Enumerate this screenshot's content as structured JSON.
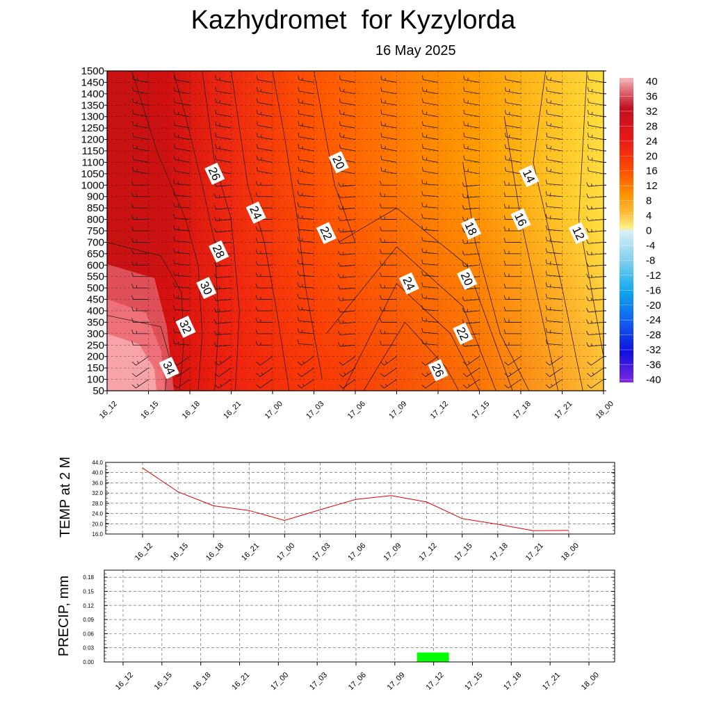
{
  "header": {
    "title": "Kazhydromet  for Kyzylorda",
    "date": "16 May 2025"
  },
  "colors": {
    "temp_line": "#e00000",
    "precip_bar": "#00ff00",
    "contour_line": "#3a1a10"
  },
  "chart_data": [
    {
      "type": "heatmap",
      "title": "",
      "x_ticks": [
        "16_12",
        "16_15",
        "16_18",
        "16_21",
        "17_00",
        "17_03",
        "17_06",
        "17_09",
        "17_12",
        "17_15",
        "17_18",
        "17_21",
        "18_00"
      ],
      "y_ticks": [
        50,
        100,
        150,
        200,
        250,
        300,
        350,
        400,
        450,
        500,
        550,
        600,
        650,
        700,
        750,
        800,
        850,
        900,
        1000,
        1050,
        1100,
        1150,
        1200,
        1250,
        1300,
        1350,
        1400,
        1450,
        1500
      ],
      "colorbar": {
        "labels": [
          40,
          36,
          32,
          28,
          24,
          20,
          16,
          12,
          8,
          4,
          0,
          -4,
          -8,
          -12,
          -16,
          -20,
          -24,
          -28,
          -32,
          -36,
          -40
        ],
        "range": [
          -40,
          40
        ]
      },
      "contour_labels": [
        {
          "value": "34",
          "time_index": 1.5,
          "level": 150
        },
        {
          "value": "32",
          "time_index": 1.9,
          "level": 330
        },
        {
          "value": "30",
          "time_index": 2.4,
          "level": 500
        },
        {
          "value": "28",
          "time_index": 2.7,
          "level": 660
        },
        {
          "value": "26",
          "time_index": 2.6,
          "level": 1050
        },
        {
          "value": "24",
          "time_index": 3.6,
          "level": 830
        },
        {
          "value": "22",
          "time_index": 5.3,
          "level": 740
        },
        {
          "value": "20",
          "time_index": 5.6,
          "level": 1100
        },
        {
          "value": "24",
          "time_index": 7.3,
          "level": 520
        },
        {
          "value": "26",
          "time_index": 8.0,
          "level": 140
        },
        {
          "value": "22",
          "time_index": 8.6,
          "level": 300
        },
        {
          "value": "20",
          "time_index": 8.7,
          "level": 540
        },
        {
          "value": "18",
          "time_index": 8.8,
          "level": 760
        },
        {
          "value": "16",
          "time_index": 10.0,
          "level": 800
        },
        {
          "value": "14",
          "time_index": 10.2,
          "level": 1040
        },
        {
          "value": "12",
          "time_index": 11.4,
          "level": 740
        }
      ]
    },
    {
      "type": "line",
      "ylabel": "TEMP at 2 M",
      "ylim": [
        16.0,
        44.0
      ],
      "y_ticks": [
        "44.0",
        "40.0",
        "36.0",
        "32.0",
        "28.0",
        "24.0",
        "20.0",
        "16.0"
      ],
      "categories": [
        "16_12",
        "16_15",
        "16_18",
        "16_21",
        "17_00",
        "17_03",
        "17_06",
        "17_09",
        "17_12",
        "17_15",
        "17_18",
        "17_21",
        "18_00"
      ],
      "values": [
        41.8,
        32.5,
        27.0,
        25.2,
        21.3,
        25.5,
        29.5,
        31.0,
        28.5,
        22.0,
        19.8,
        17.3,
        17.4
      ]
    },
    {
      "type": "bar",
      "ylabel": "PRECIP, mm",
      "ylim": [
        0.0,
        0.195
      ],
      "y_ticks": [
        "0.18",
        "0.15",
        "0.12",
        "0.09",
        "0.06",
        "0.03",
        "0.00"
      ],
      "categories": [
        "16_12",
        "16_15",
        "16_18",
        "16_21",
        "17_00",
        "17_03",
        "17_06",
        "17_09",
        "17_12",
        "17_15",
        "17_18",
        "17_21",
        "18_00"
      ],
      "values": [
        0,
        0,
        0,
        0,
        0,
        0,
        0,
        0,
        0.02,
        0,
        0,
        0,
        0
      ]
    }
  ]
}
